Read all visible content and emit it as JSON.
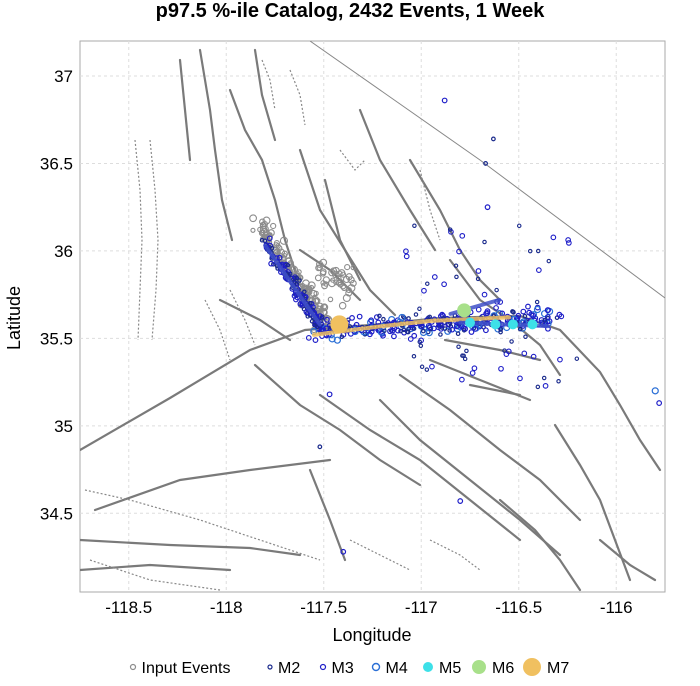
{
  "chart_data": {
    "type": "scatter",
    "title": "p97.5 %-ile Catalog, 2432 Events, 1 Week",
    "xlabel": "Longitude",
    "ylabel": "Latitude",
    "xlim": [
      -118.75,
      -115.75
    ],
    "ylim": [
      34.05,
      37.2
    ],
    "x_ticks": [
      -118.5,
      -118,
      -117.5,
      -117,
      -116.5,
      -116
    ],
    "x_tick_labels": [
      "-118.5",
      "-118",
      "-117.5",
      "-117",
      "-116.5",
      "-116"
    ],
    "y_ticks": [
      34.5,
      35,
      35.5,
      36,
      36.5,
      37
    ],
    "y_tick_labels": [
      "34.5",
      "35",
      "35.5",
      "36",
      "36.5",
      "37"
    ],
    "grid": true,
    "legend_position": "bottom",
    "legend": [
      {
        "label": "Input Events",
        "color": "#8c8c8c",
        "marker": "open-circle"
      },
      {
        "label": "M2",
        "color": "#1a2a8c",
        "marker": "open-circle"
      },
      {
        "label": "M3",
        "color": "#1e1ec8",
        "marker": "open-circle"
      },
      {
        "label": "M4",
        "color": "#2a6fd6",
        "marker": "open-circle"
      },
      {
        "label": "M5",
        "color": "#3de0e8",
        "marker": "filled-circle"
      },
      {
        "label": "M6",
        "color": "#a8e08a",
        "marker": "filled-circle"
      },
      {
        "label": "M7",
        "color": "#f0c060",
        "marker": "filled-circle"
      }
    ],
    "rupture_traces": [
      {
        "name": "trace-nw",
        "color": "#4050c8",
        "points": [
          [
            -117.8,
            36.03
          ],
          [
            -117.62,
            35.74
          ],
          [
            -117.52,
            35.58
          ]
        ]
      },
      {
        "name": "trace-main",
        "color": "#f0c060",
        "points": [
          [
            -117.55,
            35.52
          ],
          [
            -117.2,
            35.57
          ],
          [
            -116.95,
            35.6
          ],
          [
            -116.55,
            35.62
          ]
        ]
      },
      {
        "name": "trace-east",
        "color": "#4050c8",
        "points": [
          [
            -116.85,
            35.64
          ],
          [
            -116.6,
            35.72
          ]
        ]
      },
      {
        "name": "trace-east-2",
        "color": "#4050c8",
        "points": [
          [
            -116.8,
            35.59
          ],
          [
            -116.35,
            35.57
          ]
        ]
      }
    ],
    "large_events": [
      {
        "magnitude_class": "M7",
        "lon": -117.42,
        "lat": 35.58
      },
      {
        "magnitude_class": "M6",
        "lon": -116.78,
        "lat": 35.66
      },
      {
        "magnitude_class": "M5",
        "lon": -116.75,
        "lat": 35.59
      },
      {
        "magnitude_class": "M5",
        "lon": -116.62,
        "lat": 35.58
      },
      {
        "magnitude_class": "M5",
        "lon": -116.53,
        "lat": 35.58
      },
      {
        "magnitude_class": "M5",
        "lon": -116.43,
        "lat": 35.58
      }
    ],
    "isolated_events": [
      {
        "magnitude_class": "M3",
        "lon": -116.88,
        "lat": 36.86
      },
      {
        "magnitude_class": "M2",
        "lon": -116.63,
        "lat": 36.64
      },
      {
        "magnitude_class": "M2",
        "lon": -116.67,
        "lat": 36.5
      },
      {
        "magnitude_class": "M3",
        "lon": -116.66,
        "lat": 36.25
      },
      {
        "magnitude_class": "M4",
        "lon": -115.8,
        "lat": 35.2
      },
      {
        "magnitude_class": "M3",
        "lon": -115.78,
        "lat": 35.13
      },
      {
        "magnitude_class": "M2",
        "lon": -117.52,
        "lat": 34.88
      },
      {
        "magnitude_class": "M3",
        "lon": -117.4,
        "lat": 34.28
      },
      {
        "magnitude_class": "M3",
        "lon": -116.8,
        "lat": 34.57
      },
      {
        "magnitude_class": "M3",
        "lon": -117.47,
        "lat": 35.18
      }
    ]
  }
}
